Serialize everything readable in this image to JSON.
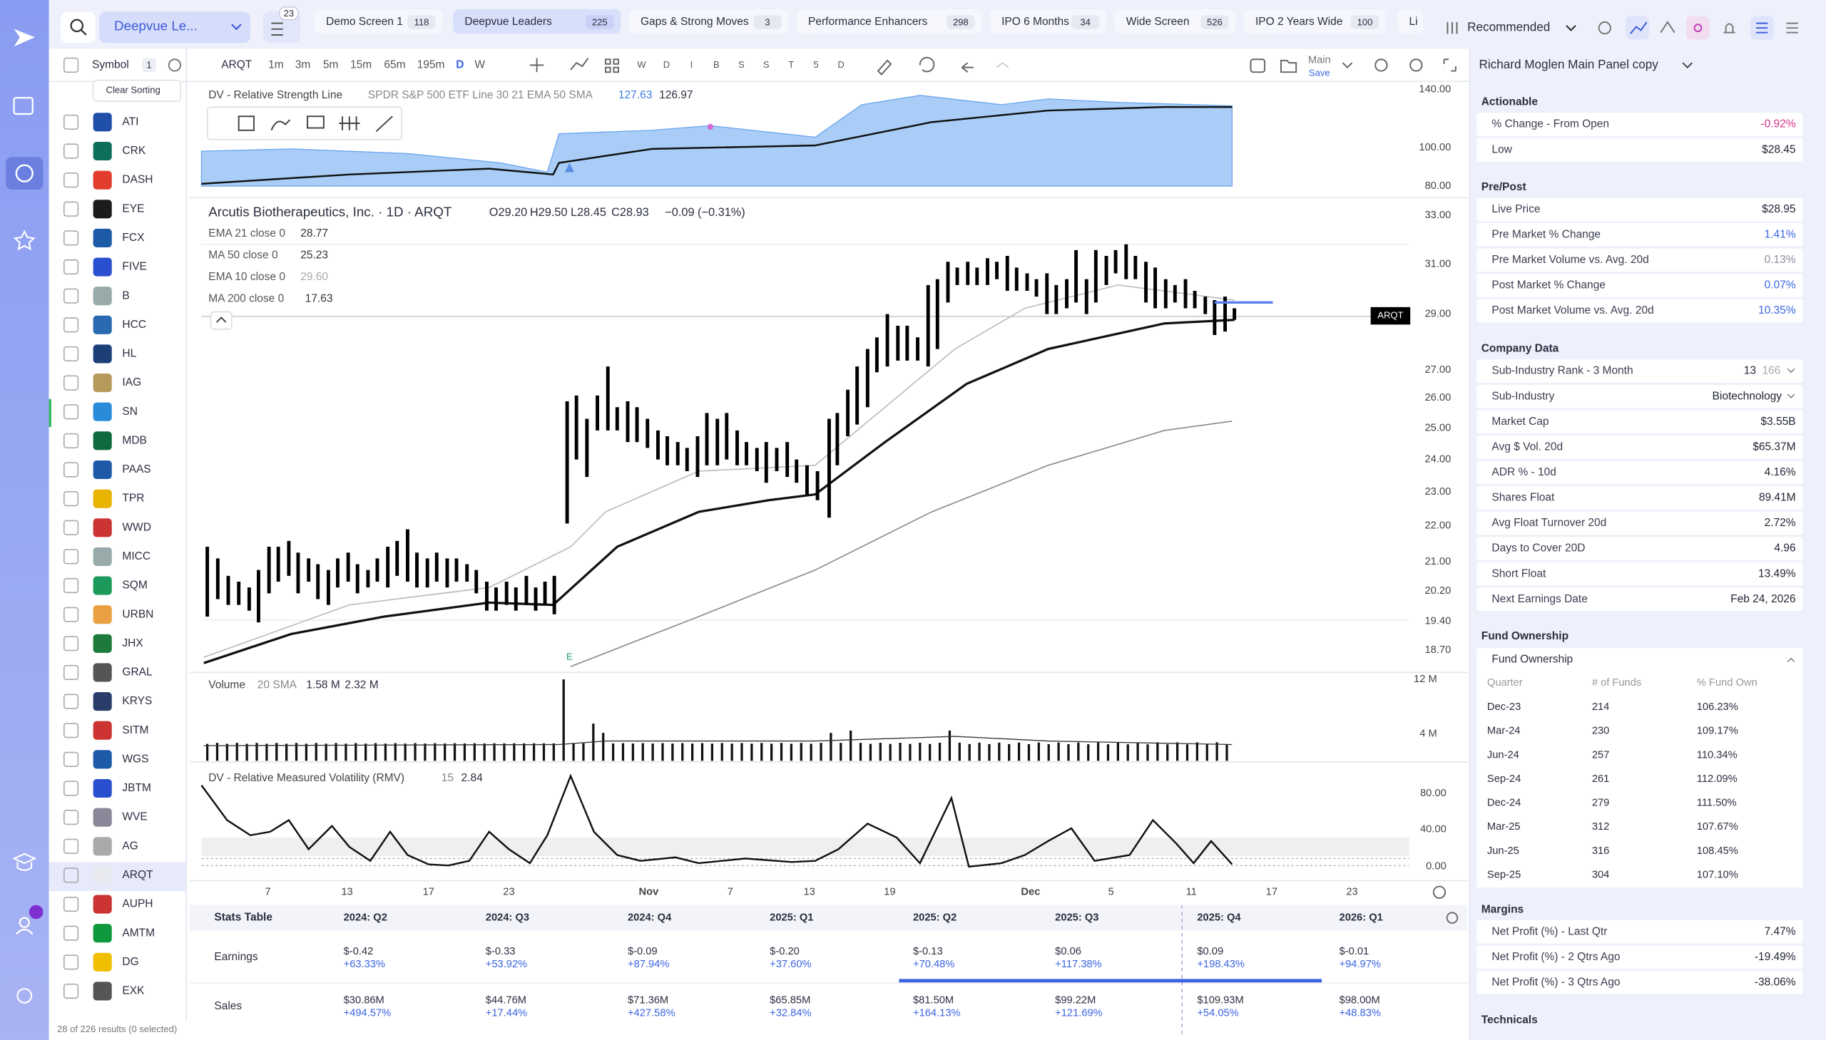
{
  "nav": {
    "search_label": "Deepvue Le...",
    "filter_count": "23",
    "view": "Recommended"
  },
  "tabs": [
    {
      "name": "Demo Screen 1",
      "count": "118"
    },
    {
      "name": "Deepvue Leaders",
      "count": "225"
    },
    {
      "name": "Gaps & Strong Moves",
      "count": "3"
    },
    {
      "name": "Performance Enhancers",
      "count": "298"
    },
    {
      "name": "IPO 6 Months",
      "count": "34"
    },
    {
      "name": "Wide Screen",
      "count": "526"
    },
    {
      "name": "IPO 2 Years Wide",
      "count": "100"
    },
    {
      "name": "Li"
    }
  ],
  "toolbar": {
    "symbol_header": "Symbol",
    "symbol_count": "1",
    "ticker": "ARQT",
    "timeframes": [
      "1m",
      "3m",
      "5m",
      "15m",
      "65m",
      "195m",
      "D",
      "W"
    ],
    "letters": [
      "W",
      "D",
      "I",
      "B",
      "S",
      "S",
      "T",
      "5",
      "D"
    ],
    "layout": "Main",
    "layout_sub": "Save"
  },
  "watchlist": {
    "clear": "Clear Sorting",
    "symbols": [
      "ATI",
      "CRK",
      "DASH",
      "EYE",
      "FCX",
      "FIVE",
      "B",
      "HCC",
      "HL",
      "IAG",
      "SN",
      "MDB",
      "PAAS",
      "TPR",
      "WWD",
      "MICC",
      "SQM",
      "URBN",
      "JHX",
      "GRAL",
      "KRYS",
      "SITM",
      "WGS",
      "JBTM",
      "WVE",
      "AG",
      "ARQT",
      "AUPH",
      "AMTM",
      "DG",
      "EXK"
    ],
    "footer": "28 of 226 results (0 selected)"
  },
  "chart": {
    "rs_title": "DV - Relative Strength Line",
    "rs_params": "SPDR S&P 500 ETF Line 30 21 EMA 50 SMA",
    "rs_values": [
      "127.63",
      "126.97"
    ],
    "title": "Arcutis Biotherapeutics, Inc. · 1D · ARQT",
    "ohlc": [
      "O29.20",
      "H29.50",
      "L28.45",
      "C28.93",
      "−0.09 (−0.31%)"
    ],
    "indicators": [
      {
        "name": "EMA 21 close 0",
        "value": "28.77"
      },
      {
        "name": "MA 50 close 0",
        "value": "25.23"
      },
      {
        "name": "EMA 10 close 0",
        "value": "29.60"
      },
      {
        "name": "MA 200 close 0",
        "value": "17.63"
      }
    ],
    "price_tag": "ARQT",
    "earnings_marker": "E",
    "rs_axis": [
      "140.00",
      "100.00",
      "80.00"
    ],
    "price_axis": [
      "33.00",
      "31.00",
      "29.00",
      "27.00",
      "26.00",
      "25.00",
      "24.00",
      "23.00",
      "22.00",
      "21.00",
      "20.20",
      "19.40",
      "18.70"
    ],
    "volume_title": "Volume",
    "volume_params": "20 SMA",
    "volume_values": [
      "1.58 M",
      "2.32 M"
    ],
    "volume_axis": [
      "12 M",
      "4 M"
    ],
    "rmv_title": "DV - Relative Measured Volatility (RMV)",
    "rmv_param": "15",
    "rmv_value": "2.84",
    "rmv_axis": [
      "80.00",
      "40.00",
      "0.00"
    ],
    "x_axis": [
      "7",
      "13",
      "17",
      "23",
      "Nov",
      "7",
      "13",
      "19",
      "Dec",
      "5",
      "11",
      "17",
      "23"
    ]
  },
  "stats": {
    "title": "Stats Table",
    "columns": [
      "2024: Q2",
      "2024: Q3",
      "2024: Q4",
      "2025: Q1",
      "2025: Q2",
      "2025: Q3",
      "2025: Q4",
      "2026: Q1"
    ],
    "rows": [
      {
        "label": "Earnings",
        "cells": [
          [
            "$-0.42",
            "+63.33%"
          ],
          [
            "$-0.33",
            "+53.92%"
          ],
          [
            "$-0.09",
            "+87.94%"
          ],
          [
            "$-0.20",
            "+37.60%"
          ],
          [
            "$-0.13",
            "+70.48%"
          ],
          [
            "$0.06",
            "+117.38%"
          ],
          [
            "$0.09",
            "+198.43%"
          ],
          [
            "$-0.01",
            "+94.97%"
          ]
        ]
      },
      {
        "label": "Sales",
        "cells": [
          [
            "$30.86M",
            "+494.57%"
          ],
          [
            "$44.76M",
            "+17.44%"
          ],
          [
            "$71.36M",
            "+427.58%"
          ],
          [
            "$65.85M",
            "+32.84%"
          ],
          [
            "$81.50M",
            "+164.13%"
          ],
          [
            "$99.22M",
            "+121.69%"
          ],
          [
            "$109.93M",
            "+54.05%"
          ],
          [
            "$98.00M",
            "+48.83%"
          ]
        ]
      }
    ]
  },
  "panel": {
    "title": "Richard Moglen Main Panel copy",
    "sections": [
      {
        "title": "Actionable",
        "rows": [
          {
            "label": "% Change - From Open",
            "value": "-0.92%",
            "color": "#d6338a"
          },
          {
            "label": "Low",
            "value": "$28.45"
          }
        ]
      },
      {
        "title": "Pre/Post",
        "rows": [
          {
            "label": "Live Price",
            "value": "$28.95"
          },
          {
            "label": "Pre Market % Change",
            "value": "1.41%",
            "color": "#3b64e0"
          },
          {
            "label": "Pre Market Volume vs. Avg. 20d",
            "value": "0.13%",
            "color": "#8a8d9c"
          },
          {
            "label": "Post Market % Change",
            "value": "0.07%",
            "color": "#3b64e0"
          },
          {
            "label": "Post Market Volume vs. Avg. 20d",
            "value": "10.35%",
            "color": "#3b64e0"
          }
        ]
      },
      {
        "title": "Company Data",
        "rows": [
          {
            "label": "Sub-Industry Rank - 3 Month",
            "value": "13",
            "extra": "166"
          },
          {
            "label": "Sub-Industry",
            "value": "Biotechnology"
          },
          {
            "label": "Market Cap",
            "value": "$3.55B"
          },
          {
            "label": "Avg $ Vol. 20d",
            "value": "$65.37M"
          },
          {
            "label": "ADR % - 10d",
            "value": "4.16%"
          },
          {
            "label": "Shares Float",
            "value": "89.41M"
          },
          {
            "label": "Avg Float Turnover 20d",
            "value": "2.72%"
          },
          {
            "label": "Days to Cover 20D",
            "value": "4.96"
          },
          {
            "label": "Short Float",
            "value": "13.49%"
          },
          {
            "label": "Next Earnings Date",
            "value": "Feb 24, 2026"
          }
        ]
      },
      {
        "title": "Margins",
        "rows": [
          {
            "label": "Net Profit (%) - Last Qtr",
            "value": "7.47%"
          },
          {
            "label": "Net Profit (%) - 2 Qtrs Ago",
            "value": "-19.49%"
          },
          {
            "label": "Net Profit (%) - 3 Qtrs Ago",
            "value": "-38.06%"
          }
        ]
      }
    ],
    "fund": {
      "title": "Fund Ownership",
      "subtitle": "Fund Ownership",
      "columns": [
        "Quarter",
        "# of Funds",
        "% Fund Own"
      ],
      "rows": [
        [
          "Dec-23",
          "214",
          "106.23%"
        ],
        [
          "Mar-24",
          "230",
          "109.17%"
        ],
        [
          "Jun-24",
          "257",
          "110.34%"
        ],
        [
          "Sep-24",
          "261",
          "112.09%"
        ],
        [
          "Dec-24",
          "279",
          "111.50%"
        ],
        [
          "Mar-25",
          "312",
          "107.67%"
        ],
        [
          "Jun-25",
          "316",
          "108.45%"
        ],
        [
          "Sep-25",
          "304",
          "107.10%"
        ]
      ]
    },
    "technicals": "Technicals"
  }
}
